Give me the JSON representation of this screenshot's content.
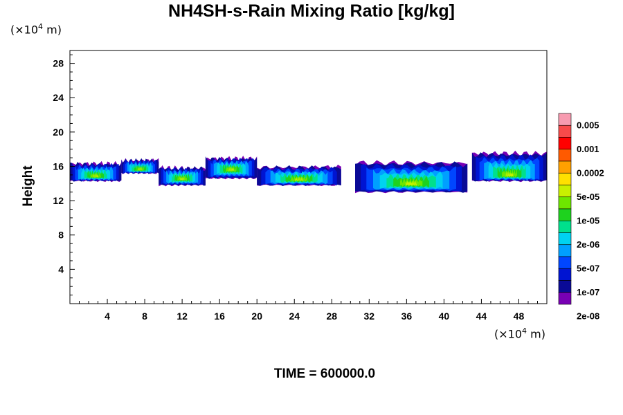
{
  "chart_data": {
    "type": "heatmap",
    "title": "NH4SH-s-Rain Mixing Ratio [kg/kg]",
    "xlabel": "",
    "ylabel": "Height",
    "x_unit": {
      "prefix": "(×10",
      "exp": "4",
      "suffix": " m)"
    },
    "y_unit": {
      "prefix": "(×10",
      "exp": "4",
      "suffix": " m)"
    },
    "xlim": [
      0,
      51
    ],
    "ylim": [
      0,
      29.5
    ],
    "x_ticks": [
      4,
      8,
      12,
      16,
      20,
      24,
      28,
      32,
      36,
      40,
      44,
      48
    ],
    "y_ticks": [
      4,
      8,
      12,
      16,
      20,
      24,
      28
    ],
    "colorbar": {
      "colors": [
        "#f79bb0",
        "#f74a4a",
        "#ff0000",
        "#ff5a00",
        "#ffa000",
        "#ffe000",
        "#c8f000",
        "#6ee600",
        "#1ed21e",
        "#00e08c",
        "#00d2f0",
        "#00a0ff",
        "#0046ff",
        "#0014d2",
        "#0a0a96",
        "#7800b4"
      ],
      "labels": [
        "0.005",
        "0.001",
        "0.0002",
        "5e-05",
        "1e-05",
        "2e-06",
        "5e-07",
        "1e-07",
        "2e-08"
      ]
    },
    "cloud_bands": [
      {
        "x0": 0,
        "x1": 5.5,
        "y_min": 14.3,
        "y_max": 16.3,
        "core": 14.8
      },
      {
        "x0": 5.5,
        "x1": 9.5,
        "y_min": 15.2,
        "y_max": 16.7,
        "core": 15.6
      },
      {
        "x0": 9.5,
        "x1": 14.5,
        "y_min": 13.8,
        "y_max": 15.8,
        "core": 14.5
      },
      {
        "x0": 14.5,
        "x1": 20,
        "y_min": 14.6,
        "y_max": 16.9,
        "core": 15.6
      },
      {
        "x0": 20,
        "x1": 29,
        "y_min": 13.8,
        "y_max": 15.9,
        "core": 14.4
      },
      {
        "x0": 30.5,
        "x1": 42.5,
        "y_min": 13.0,
        "y_max": 16.4,
        "core": 13.9
      },
      {
        "x0": 43,
        "x1": 51,
        "y_min": 14.3,
        "y_max": 17.5,
        "core": 14.9
      }
    ],
    "time_label": "TIME = 600000.0"
  }
}
